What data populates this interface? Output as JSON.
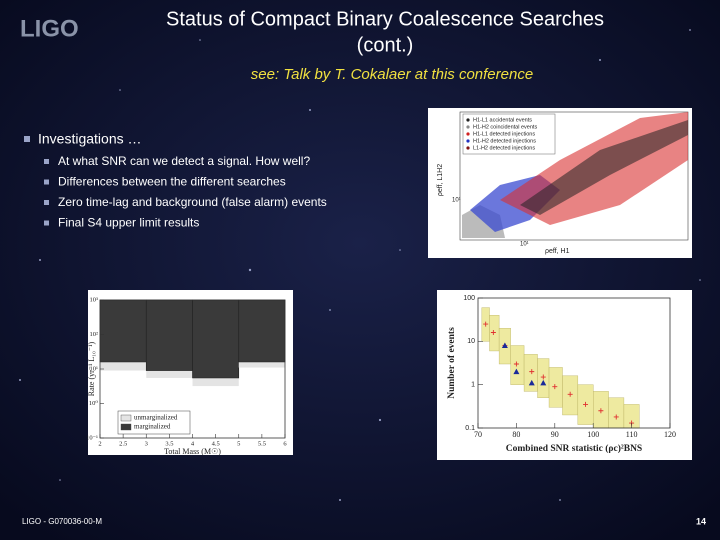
{
  "logo": "LIGO",
  "title_lines": [
    "Status of Compact Binary Coalescence Searches",
    "(cont.)"
  ],
  "subtitle": "see: Talk by T. Cokalaer at this conference",
  "bullet": {
    "text": "Investigations …",
    "items": [
      "At what SNR can we detect a signal. How well?",
      "Differences between the different searches",
      "Zero time-lag and background (false alarm) events",
      "Final S4 upper limit results"
    ]
  },
  "figure": {
    "legend": [
      {
        "label": "H1-L1 accidental events",
        "color": "#222222"
      },
      {
        "label": "H1-H2 coincidental events",
        "color": "#888888"
      },
      {
        "label": "H1-L1 detected injections",
        "color": "#d02020"
      },
      {
        "label": "H1-H2 detected injections",
        "color": "#2030c0"
      },
      {
        "label": "L1-H2 detected injections",
        "color": "#801010"
      }
    ],
    "xlabel": "ρeff, H1",
    "ylabel": "ρeff, L1H2",
    "xtick_label": "10¹",
    "ytick_label": "10¹"
  },
  "chart_data": [
    {
      "type": "histogram",
      "ylabel": "Rate (yr⁻¹ L₁₀⁻¹)",
      "xlabel": "Total Mass (M☉)",
      "bins": [
        2,
        3,
        4,
        5,
        6
      ],
      "series": [
        {
          "name": "unmarginalized",
          "color": "#e4e4e4",
          "values": [
            9,
            5.5,
            3.2,
            11
          ]
        },
        {
          "name": "marginalized",
          "color": "#3a3a3a",
          "values": [
            16,
            9,
            5.5,
            16
          ]
        }
      ],
      "xlim": [
        2,
        6
      ],
      "xticks": [
        2,
        2.5,
        3,
        3.5,
        4,
        4.5,
        5,
        5.5,
        6
      ],
      "ylim": [
        0.1,
        1000
      ],
      "yticks": [
        {
          "value": 0.1,
          "label": "10⁻¹"
        },
        {
          "value": 1,
          "label": "10⁰"
        },
        {
          "value": 10,
          "label": "10¹"
        },
        {
          "value": 100,
          "label": "10²"
        },
        {
          "value": 1000,
          "label": "10³"
        }
      ],
      "log_y": true
    },
    {
      "type": "scatter",
      "ylabel": "Number of events",
      "xlabel": "Combined SNR statistic (ρc)²BNS",
      "x": [
        72,
        74,
        77,
        80,
        84,
        87,
        90,
        94,
        98,
        102,
        106,
        110
      ],
      "band": {
        "color": "#eeeaa0",
        "lower": [
          10,
          6,
          3,
          1,
          0.7,
          0.5,
          0.3,
          0.2,
          0.12,
          0.1,
          0.1,
          0.1
        ],
        "upper": [
          60,
          40,
          20,
          8,
          5,
          4,
          2.5,
          1.6,
          1,
          0.7,
          0.5,
          0.35
        ]
      },
      "series": [
        {
          "color": "#e03030",
          "marker": "plus",
          "values": [
            25,
            16,
            8,
            3,
            2,
            1.5,
            0.9,
            0.6,
            0.35,
            0.25,
            0.18,
            0.13
          ]
        },
        {
          "color": "#1a2a9a",
          "marker": "triangle",
          "values": [
            null,
            null,
            8,
            2,
            1.1,
            1.1,
            null,
            null,
            null,
            null,
            null,
            null
          ]
        }
      ],
      "xlim": [
        70,
        120
      ],
      "xticks": [
        70,
        80,
        90,
        100,
        110,
        120
      ],
      "ylim": [
        0.1,
        100
      ],
      "yticks": [
        0.1,
        1,
        10,
        100
      ],
      "log_y": true
    }
  ],
  "footer": "LIGO - G070036-00-M",
  "page_number": "14"
}
